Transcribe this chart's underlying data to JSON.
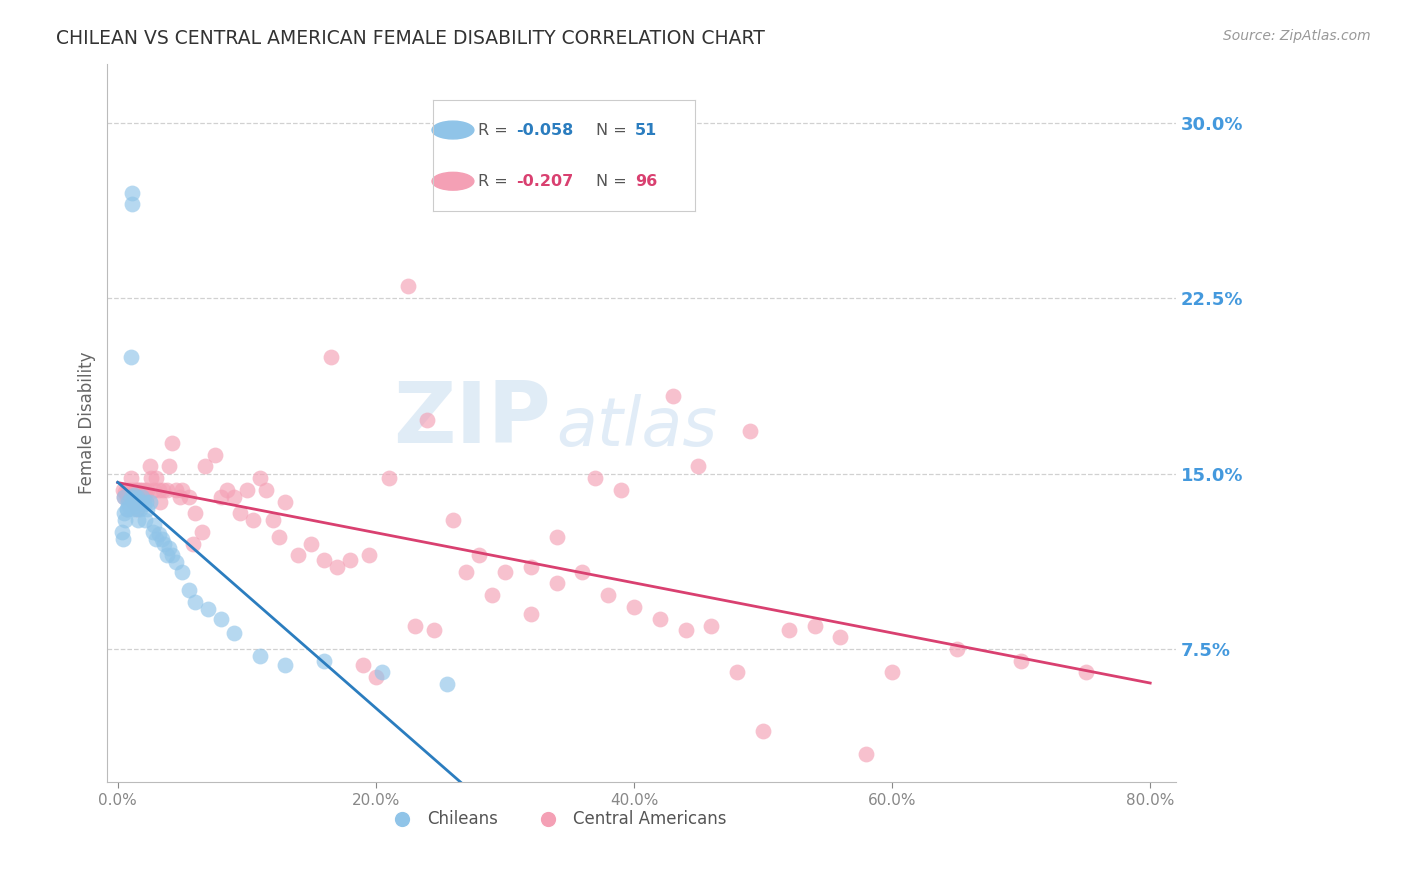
{
  "title": "CHILEAN VS CENTRAL AMERICAN FEMALE DISABILITY CORRELATION CHART",
  "source": "Source: ZipAtlas.com",
  "ylabel": "Female Disability",
  "ytick_labels": [
    "7.5%",
    "15.0%",
    "22.5%",
    "30.0%"
  ],
  "ytick_values": [
    0.075,
    0.15,
    0.225,
    0.3
  ],
  "xlim": [
    -0.008,
    0.82
  ],
  "ylim": [
    0.018,
    0.325
  ],
  "xtick_positions": [
    0.0,
    0.2,
    0.4,
    0.6,
    0.8
  ],
  "xtick_labels": [
    "0.0%",
    "20.0%",
    "40.0%",
    "60.0%",
    "80.0%"
  ],
  "color_blue": "#90C4E8",
  "color_pink": "#F4A0B5",
  "color_line_blue": "#2B7DBF",
  "color_line_pink": "#D94070",
  "color_title": "#333333",
  "color_axis_label": "#666666",
  "color_ytick": "#4499DD",
  "color_source": "#999999",
  "color_grid": "#CCCCCC",
  "watermark_zip": "ZIP",
  "watermark_atlas": "atlas",
  "legend_label_blue": "Chileans",
  "legend_label_pink": "Central Americans",
  "chileans_x": [
    0.003,
    0.004,
    0.005,
    0.005,
    0.006,
    0.007,
    0.007,
    0.008,
    0.009,
    0.01,
    0.01,
    0.011,
    0.011,
    0.012,
    0.012,
    0.013,
    0.013,
    0.014,
    0.015,
    0.015,
    0.016,
    0.016,
    0.017,
    0.018,
    0.019,
    0.02,
    0.021,
    0.022,
    0.023,
    0.025,
    0.027,
    0.028,
    0.03,
    0.032,
    0.034,
    0.036,
    0.038,
    0.04,
    0.042,
    0.045,
    0.05,
    0.055,
    0.06,
    0.07,
    0.08,
    0.09,
    0.11,
    0.13,
    0.16,
    0.205,
    0.255
  ],
  "chileans_y": [
    0.125,
    0.122,
    0.14,
    0.133,
    0.13,
    0.135,
    0.135,
    0.138,
    0.136,
    0.14,
    0.2,
    0.27,
    0.265,
    0.138,
    0.135,
    0.141,
    0.136,
    0.138,
    0.14,
    0.135,
    0.138,
    0.13,
    0.135,
    0.138,
    0.14,
    0.137,
    0.13,
    0.138,
    0.135,
    0.138,
    0.125,
    0.128,
    0.122,
    0.124,
    0.122,
    0.12,
    0.115,
    0.118,
    0.115,
    0.112,
    0.108,
    0.1,
    0.095,
    0.092,
    0.088,
    0.082,
    0.072,
    0.068,
    0.07,
    0.065,
    0.06
  ],
  "central_americans_x": [
    0.004,
    0.005,
    0.006,
    0.007,
    0.008,
    0.009,
    0.01,
    0.01,
    0.011,
    0.012,
    0.013,
    0.014,
    0.015,
    0.015,
    0.016,
    0.016,
    0.017,
    0.018,
    0.019,
    0.02,
    0.021,
    0.022,
    0.023,
    0.025,
    0.026,
    0.028,
    0.03,
    0.032,
    0.033,
    0.035,
    0.038,
    0.04,
    0.042,
    0.045,
    0.048,
    0.05,
    0.055,
    0.058,
    0.06,
    0.065,
    0.068,
    0.075,
    0.08,
    0.085,
    0.09,
    0.095,
    0.1,
    0.105,
    0.11,
    0.115,
    0.12,
    0.125,
    0.13,
    0.14,
    0.15,
    0.16,
    0.17,
    0.18,
    0.195,
    0.21,
    0.225,
    0.24,
    0.26,
    0.28,
    0.3,
    0.32,
    0.34,
    0.36,
    0.38,
    0.4,
    0.42,
    0.44,
    0.46,
    0.48,
    0.5,
    0.52,
    0.54,
    0.56,
    0.58,
    0.6,
    0.65,
    0.7,
    0.75,
    0.49,
    0.43,
    0.37,
    0.32,
    0.27,
    0.23,
    0.19,
    0.45,
    0.39,
    0.34,
    0.29,
    0.245,
    0.2,
    0.165
  ],
  "central_americans_y": [
    0.143,
    0.14,
    0.142,
    0.14,
    0.143,
    0.141,
    0.143,
    0.148,
    0.14,
    0.138,
    0.143,
    0.14,
    0.135,
    0.143,
    0.143,
    0.14,
    0.143,
    0.14,
    0.143,
    0.14,
    0.143,
    0.14,
    0.143,
    0.153,
    0.148,
    0.143,
    0.148,
    0.143,
    0.138,
    0.143,
    0.143,
    0.153,
    0.163,
    0.143,
    0.14,
    0.143,
    0.14,
    0.12,
    0.133,
    0.125,
    0.153,
    0.158,
    0.14,
    0.143,
    0.14,
    0.133,
    0.143,
    0.13,
    0.148,
    0.143,
    0.13,
    0.123,
    0.138,
    0.115,
    0.12,
    0.113,
    0.11,
    0.113,
    0.115,
    0.148,
    0.23,
    0.173,
    0.13,
    0.115,
    0.108,
    0.11,
    0.103,
    0.108,
    0.098,
    0.093,
    0.088,
    0.083,
    0.085,
    0.065,
    0.04,
    0.083,
    0.085,
    0.08,
    0.03,
    0.065,
    0.075,
    0.07,
    0.065,
    0.168,
    0.183,
    0.148,
    0.09,
    0.108,
    0.085,
    0.068,
    0.153,
    0.143,
    0.123,
    0.098,
    0.083,
    0.063,
    0.2
  ]
}
